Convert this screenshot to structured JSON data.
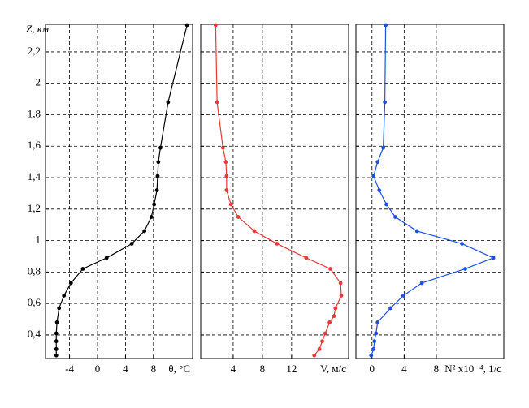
{
  "chart_data": [
    {
      "type": "line",
      "ylabel": "Z, км",
      "xlabel": "θ, °C",
      "color": "#000000",
      "xlim": [
        -7.44,
        13.6
      ],
      "ylim": [
        0.25,
        2.375
      ],
      "xticks": [
        -4,
        0,
        4,
        8
      ],
      "yticks": [
        {
          "value": 0.4,
          "label": "0,4"
        },
        {
          "value": 0.6,
          "label": "0,6"
        },
        {
          "value": 0.8,
          "label": "0,8"
        },
        1,
        {
          "value": 1.2,
          "label": "1,2"
        },
        {
          "value": 1.4,
          "label": "1,4"
        },
        {
          "value": 1.6,
          "label": "1,6"
        },
        {
          "value": 1.8,
          "label": "1,8"
        },
        2,
        {
          "value": 2.2,
          "label": "2,2"
        }
      ],
      "ytick_labels": true,
      "grid": true,
      "x": [
        12.8,
        10.1,
        9.0,
        8.7,
        8.6,
        8.5,
        8.1,
        7.7,
        6.7,
        4.9,
        1.3,
        -2.1,
        -3.8,
        -4.8,
        -5.5,
        -5.8,
        -5.9,
        -5.9,
        -5.9,
        -5.9
      ],
      "values": [
        2.37,
        1.88,
        1.59,
        1.5,
        1.41,
        1.32,
        1.23,
        1.15,
        1.06,
        0.98,
        0.89,
        0.82,
        0.73,
        0.65,
        0.57,
        0.48,
        0.41,
        0.36,
        0.31,
        0.27
      ]
    },
    {
      "type": "line",
      "xlabel": "V, м/с",
      "color": "#e8393a",
      "xlim": [
        -0.44,
        19.8
      ],
      "ylim": [
        0.25,
        2.375
      ],
      "xticks": [
        4,
        8,
        12
      ],
      "yticks": [
        0.4,
        0.6,
        0.8,
        1,
        1.2,
        1.4,
        1.6,
        1.8,
        2,
        2.2
      ],
      "ytick_labels": false,
      "grid": true,
      "x": [
        1.6,
        1.8,
        2.6,
        3.0,
        3.1,
        3.1,
        3.7,
        4.7,
        6.9,
        10.0,
        14.0,
        17.3,
        18.7,
        18.8,
        18.0,
        17.8,
        17.2,
        16.6,
        16.2,
        15.8,
        15.1
      ],
      "values": [
        2.37,
        1.88,
        1.59,
        1.5,
        1.41,
        1.32,
        1.23,
        1.15,
        1.06,
        0.98,
        0.89,
        0.82,
        0.73,
        0.65,
        0.57,
        0.52,
        0.48,
        0.41,
        0.36,
        0.31,
        0.27
      ]
    },
    {
      "type": "line",
      "xlabel": "N² x10⁻⁴, 1/с",
      "color": "#1f4fe0",
      "xlim": [
        -2.0,
        16.4
      ],
      "ylim": [
        0.25,
        2.375
      ],
      "xticks": [
        0,
        4,
        8
      ],
      "yticks": [
        0.4,
        0.6,
        0.8,
        1,
        1.2,
        1.4,
        1.6,
        1.8,
        2,
        2.2
      ],
      "ytick_labels": false,
      "grid": true,
      "x": [
        1.7,
        1.6,
        1.4,
        0.7,
        0.2,
        0.9,
        1.8,
        2.9,
        5.6,
        11.2,
        15.1,
        11.6,
        6.2,
        3.9,
        2.3,
        0.7,
        0.5,
        0.3,
        0.2,
        -0.1
      ],
      "values": [
        2.37,
        1.88,
        1.59,
        1.5,
        1.41,
        1.32,
        1.23,
        1.15,
        1.06,
        0.98,
        0.89,
        0.82,
        0.73,
        0.65,
        0.57,
        0.48,
        0.41,
        0.36,
        0.31,
        0.27
      ]
    }
  ]
}
